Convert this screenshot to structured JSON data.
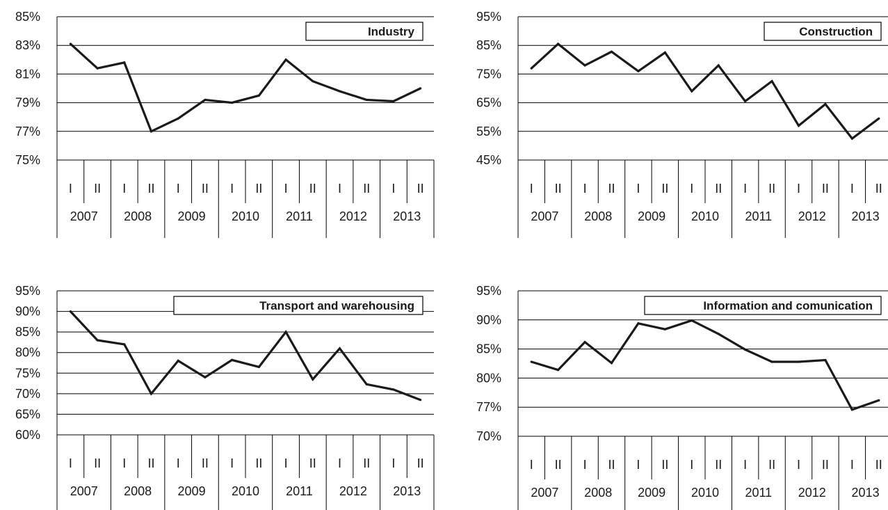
{
  "chart_data": [
    {
      "type": "line",
      "title": "Industry",
      "years": [
        "2007",
        "2008",
        "2009",
        "2010",
        "2011",
        "2012",
        "2013"
      ],
      "halves": [
        "I",
        "II"
      ],
      "ylim": [
        75,
        85
      ],
      "yticks": [
        75,
        77,
        79,
        81,
        83,
        85
      ],
      "ytick_labels": [
        "75%",
        "77%",
        "79%",
        "81%",
        "83%",
        "85%"
      ],
      "grid": true,
      "legend": "top-right title box",
      "series": [
        {
          "values": [
            83.1,
            81.4,
            81.8,
            77.0,
            77.9,
            79.2,
            79.0,
            79.5,
            82.0,
            80.5,
            79.8,
            79.2,
            79.1,
            80.0
          ]
        }
      ]
    },
    {
      "type": "line",
      "title": "Construction",
      "years": [
        "2007",
        "2008",
        "2009",
        "2010",
        "2011",
        "2012",
        "2013"
      ],
      "halves": [
        "I",
        "II"
      ],
      "ylim": [
        45,
        95
      ],
      "yticks": [
        45,
        55,
        65,
        75,
        85,
        95
      ],
      "ytick_labels": [
        "45%",
        "55%",
        "65%",
        "75%",
        "85%",
        "95%"
      ],
      "grid": true,
      "legend": "top-right title box",
      "series": [
        {
          "values": [
            77.0,
            85.5,
            78.0,
            82.8,
            76.0,
            82.5,
            69.0,
            78.0,
            65.5,
            72.5,
            57.0,
            64.5,
            52.5,
            59.5
          ]
        }
      ]
    },
    {
      "type": "line",
      "title": "Transport and warehousing",
      "years": [
        "2007",
        "2008",
        "2009",
        "2010",
        "2011",
        "2012",
        "2013"
      ],
      "halves": [
        "I",
        "II"
      ],
      "ylim": [
        60,
        95
      ],
      "yticks": [
        60,
        65,
        70,
        75,
        80,
        85,
        90,
        95
      ],
      "ytick_labels": [
        "60%",
        "65%",
        "70%",
        "75%",
        "80%",
        "85%",
        "90%",
        "95%"
      ],
      "grid": true,
      "legend": "top-right title box",
      "series": [
        {
          "values": [
            90.0,
            83.0,
            82.0,
            70.0,
            78.0,
            74.0,
            78.2,
            76.5,
            85.0,
            73.5,
            81.0,
            72.3,
            71.0,
            68.5
          ]
        }
      ]
    },
    {
      "type": "line",
      "title": "Information and comunication",
      "years": [
        "2007",
        "2008",
        "2009",
        "2010",
        "2011",
        "2012",
        "2013"
      ],
      "halves": [
        "I",
        "II"
      ],
      "ytick_labels": [
        "70%",
        "77%",
        "80%",
        "85%",
        "90%",
        "95%"
      ],
      "grid": true,
      "legend": "top-right title box",
      "series": [
        {
          "values": [
            82.8,
            81.4,
            86.2,
            82.6,
            89.4,
            88.4,
            89.9,
            87.6,
            84.9,
            82.8,
            82.8,
            83.1,
            76.4,
            77.7
          ]
        }
      ],
      "tick_values_in_positions": [
        70,
        77,
        80,
        85,
        90,
        95
      ]
    }
  ]
}
